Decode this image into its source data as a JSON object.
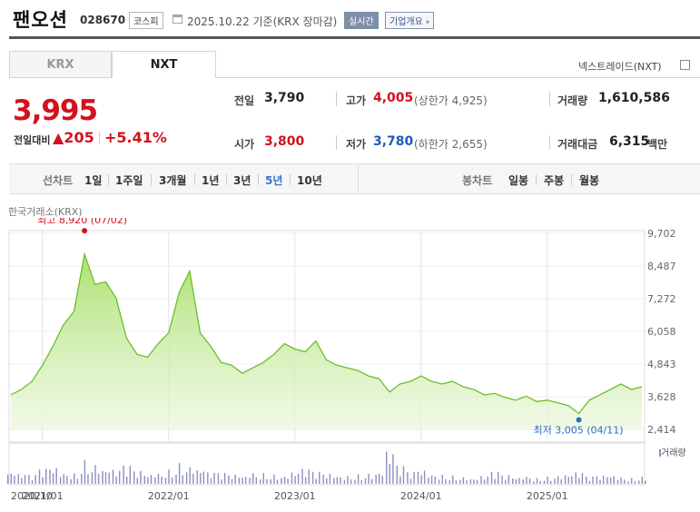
{
  "header": {
    "title": "팬오션",
    "code": "028670",
    "market": "코스피",
    "date": "2025.10.22  기준(KRX 장마감)",
    "realtime": "실시간",
    "company_info": "기업개요",
    "company_chevron": "▾"
  },
  "tabs": [
    {
      "label": "KRX",
      "selected": false
    },
    {
      "label": "NXT",
      "selected": true
    }
  ],
  "nextrade_link": "넥스트레이드(NXT)",
  "quote": {
    "price": "3,995",
    "change_label": "전일대비",
    "change_value": "▲205",
    "change_percent": "+5.41%"
  },
  "stats": {
    "prev_label": "전일",
    "prev": "3,790",
    "high_label": "고가",
    "high": "4,005",
    "upper_limit": "(상한가 4,925)",
    "volume_label": "거래량",
    "volume": "1,610,586",
    "open_label": "시가",
    "open": "3,800",
    "low_label": "저가",
    "low": "3,780",
    "lower_limit": "(하한가 2,655)",
    "amount_label": "거래대금",
    "amount": "6,315",
    "amount_unit": "백만"
  },
  "period_tabs": {
    "label": "선차트",
    "items": [
      "1일",
      "1주일",
      "3개월",
      "1년",
      "3년",
      "5년",
      "10년"
    ],
    "selected": "5년"
  },
  "candle_tabs": {
    "label": "봉차트",
    "items": [
      "일봉",
      "주봉",
      "월봉"
    ]
  },
  "chart_data": {
    "type": "area",
    "source_label": "한국거래소(KRX)",
    "y_ticks": [
      "9,702",
      "8,487",
      "7,272",
      "6,058",
      "4,843",
      "3,628",
      "2,414"
    ],
    "ylim": [
      2414,
      9702
    ],
    "x_tick_labels": [
      "2020/10",
      "2021/01",
      "2022/01",
      "2023/01",
      "2024/01",
      "2025/01"
    ],
    "x_tick_positions": [
      "2020-10",
      "2021-01",
      "2022-01",
      "2023-01",
      "2024-01",
      "2025-01"
    ],
    "xlim": [
      "2020-10",
      "2025-10"
    ],
    "color": "#7fcc3a",
    "series": [
      {
        "x": [
          "2020-10",
          "2020-11",
          "2020-12",
          "2021-01",
          "2021-02",
          "2021-03",
          "2021-04",
          "2021-05",
          "2021-06",
          "2021-07",
          "2021-08",
          "2021-09",
          "2021-10",
          "2021-11",
          "2021-12",
          "2022-01",
          "2022-02",
          "2022-03",
          "2022-04",
          "2022-05",
          "2022-06",
          "2022-07",
          "2022-08",
          "2022-09",
          "2022-10",
          "2022-11",
          "2022-12",
          "2023-01",
          "2023-02",
          "2023-03",
          "2023-04",
          "2023-05",
          "2023-06",
          "2023-07",
          "2023-08",
          "2023-09",
          "2023-10",
          "2023-11",
          "2023-12",
          "2024-01",
          "2024-02",
          "2024-03",
          "2024-04",
          "2024-05",
          "2024-06",
          "2024-07",
          "2024-08",
          "2024-09",
          "2024-10",
          "2024-11",
          "2024-12",
          "2025-01",
          "2025-02",
          "2025-03",
          "2025-04",
          "2025-05",
          "2025-06",
          "2025-07",
          "2025-08",
          "2025-09",
          "2025-10"
        ],
        "values": [
          3700,
          3900,
          4200,
          4800,
          5500,
          6300,
          6800,
          8920,
          7800,
          7900,
          7300,
          5800,
          5200,
          5100,
          5600,
          6000,
          7500,
          8300,
          6000,
          5500,
          4900,
          4800,
          4500,
          4700,
          4900,
          5200,
          5600,
          5400,
          5300,
          5700,
          5000,
          4800,
          4700,
          4600,
          4400,
          4300,
          3800,
          4100,
          4200,
          4400,
          4200,
          4100,
          4200,
          4000,
          3900,
          3700,
          3750,
          3600,
          3500,
          3650,
          3450,
          3500,
          3400,
          3300,
          3005,
          3500,
          3700,
          3900,
          4100,
          3900,
          3995
        ]
      }
    ],
    "max_label": "최고 8,920 (07/02)",
    "min_label": "최저 3,005 (04/11)",
    "volume_legend": "거래량",
    "volume_values": [
      22,
      18,
      15,
      25,
      30,
      20,
      18,
      40,
      35,
      28,
      25,
      30,
      22,
      18,
      20,
      24,
      35,
      32,
      28,
      20,
      18,
      16,
      15,
      20,
      18,
      16,
      15,
      22,
      25,
      20,
      18,
      15,
      14,
      16,
      18,
      22,
      60,
      30,
      20,
      25,
      18,
      16,
      14,
      12,
      10,
      14,
      20,
      15,
      12,
      14,
      10,
      12,
      15,
      18,
      20,
      12,
      14,
      16,
      12,
      10,
      12
    ]
  }
}
